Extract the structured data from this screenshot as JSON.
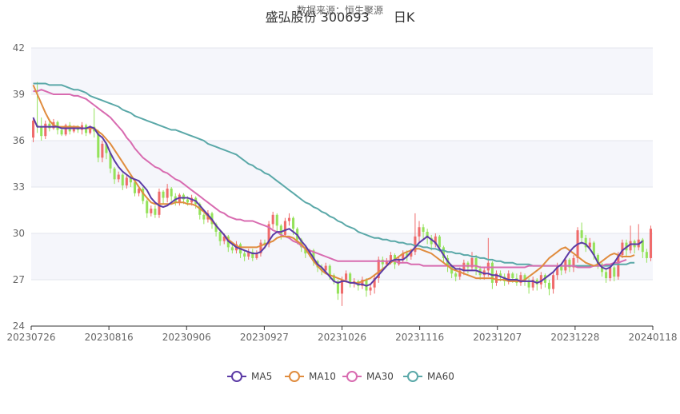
{
  "header": {
    "source_label": "数据来源：恒生聚源",
    "title": "盛弘股份 300693",
    "period_label": "日K"
  },
  "chart_data": {
    "type": "candlestick",
    "ylim": [
      24,
      42
    ],
    "yticks": [
      24,
      27,
      30,
      33,
      36,
      39,
      42
    ],
    "xticks": [
      "20230726",
      "20230816",
      "20230906",
      "20230927",
      "20231026",
      "20231116",
      "20231207",
      "20231228",
      "20240118"
    ],
    "colors": {
      "up": "#ef6b6b",
      "down": "#94e25a",
      "MA5": "#5b3aa5",
      "MA10": "#e08c3e",
      "MA30": "#d86bb0",
      "MA60": "#5aa8a8"
    },
    "legend": [
      "MA5",
      "MA10",
      "MA30",
      "MA60"
    ],
    "candles": [
      [
        36.2,
        37.3,
        35.9,
        37.4
      ],
      [
        37.0,
        36.9,
        36.5,
        39.8
      ],
      [
        36.9,
        36.3,
        36.0,
        37.5
      ],
      [
        36.3,
        37.1,
        36.1,
        37.3
      ],
      [
        37.1,
        36.8,
        36.6,
        37.4
      ],
      [
        36.8,
        37.2,
        36.7,
        37.4
      ],
      [
        37.2,
        36.7,
        36.4,
        37.3
      ],
      [
        36.7,
        36.4,
        36.3,
        36.9
      ],
      [
        36.4,
        37.0,
        36.3,
        37.1
      ],
      [
        37.0,
        36.6,
        36.4,
        37.2
      ],
      [
        36.6,
        36.9,
        36.5,
        37.0
      ],
      [
        36.9,
        36.7,
        36.5,
        37.0
      ],
      [
        36.7,
        37.0,
        36.4,
        37.2
      ],
      [
        37.0,
        36.5,
        36.3,
        37.1
      ],
      [
        36.5,
        36.9,
        36.4,
        37.0
      ],
      [
        36.9,
        36.6,
        36.2,
        38.1
      ],
      [
        36.6,
        34.9,
        34.6,
        36.7
      ],
      [
        34.9,
        35.8,
        34.6,
        36.0
      ],
      [
        35.8,
        35.2,
        34.8,
        35.9
      ],
      [
        35.2,
        34.2,
        33.9,
        35.3
      ],
      [
        34.2,
        33.5,
        33.2,
        34.3
      ],
      [
        33.5,
        33.8,
        33.3,
        34.0
      ],
      [
        33.8,
        33.1,
        32.8,
        33.9
      ],
      [
        33.1,
        33.6,
        32.9,
        33.8
      ],
      [
        33.6,
        33.3,
        33.0,
        33.8
      ],
      [
        33.3,
        32.6,
        32.4,
        33.4
      ],
      [
        32.6,
        32.9,
        32.4,
        33.0
      ],
      [
        32.9,
        32.1,
        31.9,
        33.0
      ],
      [
        32.1,
        31.3,
        31.0,
        32.2
      ],
      [
        31.3,
        31.6,
        31.1,
        31.8
      ],
      [
        31.6,
        31.2,
        31.0,
        31.8
      ],
      [
        31.2,
        32.7,
        31.0,
        32.9
      ],
      [
        32.7,
        32.3,
        31.9,
        32.8
      ],
      [
        32.3,
        32.9,
        32.0,
        33.2
      ],
      [
        32.9,
        32.4,
        32.1,
        33.0
      ],
      [
        32.4,
        32.0,
        31.8,
        32.6
      ],
      [
        32.0,
        32.5,
        31.8,
        32.6
      ],
      [
        32.5,
        32.2,
        31.9,
        32.6
      ],
      [
        32.2,
        32.0,
        31.8,
        32.4
      ],
      [
        32.0,
        32.3,
        31.8,
        32.5
      ],
      [
        32.3,
        31.9,
        31.6,
        32.4
      ],
      [
        31.9,
        31.2,
        30.9,
        32.0
      ],
      [
        31.2,
        30.9,
        30.6,
        31.3
      ],
      [
        30.9,
        31.3,
        30.7,
        31.5
      ],
      [
        31.3,
        30.6,
        30.3,
        31.4
      ],
      [
        30.6,
        30.1,
        29.8,
        30.7
      ],
      [
        30.1,
        29.5,
        29.2,
        30.2
      ],
      [
        29.5,
        29.8,
        29.3,
        30.0
      ],
      [
        29.8,
        29.1,
        28.8,
        29.9
      ],
      [
        29.1,
        28.9,
        28.7,
        29.4
      ],
      [
        28.9,
        29.3,
        28.7,
        29.5
      ],
      [
        29.3,
        28.7,
        28.4,
        29.4
      ],
      [
        28.7,
        28.5,
        28.2,
        28.9
      ],
      [
        28.5,
        28.8,
        28.3,
        29.0
      ],
      [
        28.8,
        28.4,
        28.2,
        29.0
      ],
      [
        28.4,
        28.7,
        28.3,
        28.9
      ],
      [
        28.7,
        29.4,
        28.5,
        29.6
      ],
      [
        29.4,
        29.3,
        29.0,
        29.6
      ],
      [
        29.3,
        30.6,
        29.1,
        30.8
      ],
      [
        30.6,
        31.2,
        30.3,
        31.4
      ],
      [
        31.2,
        30.5,
        30.1,
        31.3
      ],
      [
        30.5,
        29.9,
        29.6,
        30.6
      ],
      [
        29.9,
        30.8,
        29.8,
        31.0
      ],
      [
        30.8,
        31.0,
        30.5,
        31.3
      ],
      [
        31.0,
        30.3,
        29.9,
        31.1
      ],
      [
        30.3,
        29.6,
        29.3,
        30.4
      ],
      [
        29.6,
        29.1,
        28.8,
        29.7
      ],
      [
        29.1,
        28.7,
        28.4,
        29.2
      ],
      [
        28.7,
        28.9,
        28.5,
        29.0
      ],
      [
        28.9,
        28.2,
        27.9,
        29.0
      ],
      [
        28.2,
        27.8,
        27.5,
        28.3
      ],
      [
        27.8,
        27.6,
        27.3,
        28.0
      ],
      [
        27.6,
        27.9,
        27.4,
        28.1
      ],
      [
        27.9,
        27.3,
        27.0,
        28.0
      ],
      [
        27.3,
        26.9,
        26.7,
        27.4
      ],
      [
        26.9,
        26.1,
        25.7,
        27.0
      ],
      [
        26.1,
        27.0,
        25.3,
        27.2
      ],
      [
        27.0,
        27.4,
        26.8,
        27.6
      ],
      [
        27.4,
        26.8,
        26.5,
        27.5
      ],
      [
        26.8,
        26.9,
        26.5,
        27.1
      ],
      [
        26.9,
        26.6,
        26.3,
        27.0
      ],
      [
        26.6,
        27.0,
        26.4,
        27.2
      ],
      [
        27.0,
        26.3,
        25.9,
        27.1
      ],
      [
        26.3,
        26.5,
        26.0,
        26.7
      ],
      [
        26.5,
        27.1,
        26.1,
        27.3
      ],
      [
        27.1,
        28.3,
        26.8,
        28.5
      ],
      [
        28.3,
        28.0,
        27.7,
        28.5
      ],
      [
        28.0,
        28.2,
        27.9,
        28.4
      ],
      [
        28.2,
        28.6,
        28.0,
        28.8
      ],
      [
        28.6,
        28.0,
        27.7,
        28.7
      ],
      [
        28.0,
        28.3,
        27.9,
        28.5
      ],
      [
        28.3,
        28.7,
        28.1,
        28.9
      ],
      [
        28.7,
        28.5,
        28.2,
        28.9
      ],
      [
        28.5,
        28.8,
        28.3,
        29.0
      ],
      [
        28.8,
        29.8,
        28.6,
        31.3
      ],
      [
        29.8,
        30.4,
        29.4,
        30.8
      ],
      [
        30.4,
        30.1,
        29.6,
        30.6
      ],
      [
        30.1,
        29.7,
        29.3,
        30.3
      ],
      [
        29.7,
        29.3,
        28.9,
        29.9
      ],
      [
        29.3,
        29.8,
        29.1,
        30.0
      ],
      [
        29.8,
        29.1,
        28.8,
        29.9
      ],
      [
        29.1,
        28.4,
        28.1,
        29.2
      ],
      [
        28.4,
        27.9,
        27.5,
        28.6
      ],
      [
        27.9,
        27.4,
        27.1,
        28.0
      ],
      [
        27.4,
        27.2,
        26.9,
        27.5
      ],
      [
        27.2,
        27.6,
        27.0,
        27.8
      ],
      [
        27.6,
        28.1,
        27.3,
        28.3
      ],
      [
        28.1,
        27.8,
        27.4,
        28.2
      ],
      [
        27.8,
        28.4,
        27.6,
        28.8
      ],
      [
        28.4,
        27.7,
        27.3,
        28.6
      ],
      [
        27.7,
        27.3,
        27.0,
        27.9
      ],
      [
        27.3,
        27.6,
        27.0,
        27.8
      ],
      [
        27.6,
        28.1,
        27.2,
        29.7
      ],
      [
        28.1,
        26.8,
        26.4,
        28.2
      ],
      [
        26.8,
        27.4,
        26.6,
        27.6
      ],
      [
        27.4,
        27.2,
        26.9,
        27.6
      ],
      [
        27.2,
        26.9,
        26.6,
        27.4
      ],
      [
        26.9,
        27.4,
        26.7,
        27.6
      ],
      [
        27.4,
        27.1,
        26.8,
        27.5
      ],
      [
        27.1,
        26.8,
        26.6,
        27.4
      ],
      [
        26.8,
        27.3,
        26.6,
        27.5
      ],
      [
        27.3,
        26.9,
        26.6,
        27.4
      ],
      [
        26.9,
        26.5,
        26.1,
        27.1
      ],
      [
        26.5,
        27.0,
        26.3,
        27.2
      ],
      [
        27.0,
        26.7,
        26.3,
        27.1
      ],
      [
        26.7,
        27.3,
        26.4,
        27.5
      ],
      [
        27.3,
        26.8,
        26.5,
        27.4
      ],
      [
        26.8,
        26.4,
        26.0,
        27.0
      ],
      [
        26.4,
        27.3,
        26.1,
        27.5
      ],
      [
        27.3,
        27.9,
        27.0,
        28.1
      ],
      [
        27.9,
        27.6,
        27.3,
        28.1
      ],
      [
        27.6,
        28.3,
        27.4,
        28.5
      ],
      [
        28.3,
        27.8,
        27.5,
        28.4
      ],
      [
        27.8,
        28.4,
        27.5,
        28.6
      ],
      [
        28.4,
        30.2,
        28.1,
        30.4
      ],
      [
        30.2,
        29.7,
        29.3,
        30.7
      ],
      [
        29.7,
        29.1,
        28.8,
        29.9
      ],
      [
        29.1,
        29.4,
        28.9,
        29.7
      ],
      [
        29.4,
        28.6,
        28.3,
        29.5
      ],
      [
        28.6,
        28.0,
        27.7,
        28.7
      ],
      [
        28.0,
        27.5,
        27.2,
        28.1
      ],
      [
        27.5,
        27.1,
        26.8,
        27.7
      ],
      [
        27.1,
        27.8,
        26.9,
        28.0
      ],
      [
        27.8,
        27.2,
        26.9,
        27.9
      ],
      [
        27.2,
        28.6,
        27.0,
        28.8
      ],
      [
        28.6,
        29.4,
        28.4,
        29.6
      ],
      [
        29.4,
        28.9,
        28.5,
        29.6
      ],
      [
        28.9,
        29.5,
        28.7,
        30.5
      ],
      [
        29.5,
        29.1,
        28.7,
        29.6
      ],
      [
        29.1,
        29.6,
        28.9,
        30.6
      ],
      [
        29.6,
        28.8,
        28.4,
        29.7
      ],
      [
        28.8,
        28.4,
        28.1,
        29.0
      ],
      [
        28.4,
        30.3,
        28.2,
        30.5
      ]
    ],
    "ma5": [
      37.5,
      36.9,
      36.9,
      36.9,
      36.9,
      36.9,
      36.9,
      36.8,
      36.8,
      36.8,
      36.8,
      36.8,
      36.8,
      36.8,
      36.9,
      36.8,
      36.4,
      36.2,
      35.8,
      35.2,
      34.7,
      34.3,
      34.0,
      33.8,
      33.6,
      33.5,
      33.4,
      33.1,
      32.8,
      32.3,
      32.0,
      31.8,
      31.7,
      31.8,
      32.0,
      32.2,
      32.3,
      32.3,
      32.3,
      32.2,
      32.1,
      31.8,
      31.5,
      31.2,
      30.9,
      30.5,
      30.2,
      29.9,
      29.5,
      29.3,
      29.1,
      29.0,
      28.9,
      28.8,
      28.7,
      28.7,
      28.8,
      29.1,
      29.5,
      29.9,
      30.1,
      30.1,
      30.2,
      30.3,
      30.1,
      29.9,
      29.5,
      29.2,
      28.8,
      28.4,
      28.0,
      27.8,
      27.5,
      27.2,
      26.9,
      26.8,
      26.9,
      26.9,
      26.8,
      26.8,
      26.7,
      26.7,
      26.6,
      26.7,
      27.0,
      27.3,
      27.6,
      27.9,
      28.2,
      28.3,
      28.3,
      28.3,
      28.5,
      28.8,
      29.1,
      29.4,
      29.6,
      29.8,
      29.6,
      29.4,
      29.0,
      28.6,
      28.2,
      27.9,
      27.7,
      27.7,
      27.6,
      27.6,
      27.6,
      27.6,
      27.5,
      27.4,
      27.4,
      27.3,
      27.3,
      27.2,
      27.1,
      27.0,
      27.0,
      27.0,
      26.9,
      26.9,
      26.9,
      26.9,
      26.8,
      26.9,
      27.1,
      27.3,
      27.5,
      27.8,
      28.0,
      28.4,
      28.8,
      29.1,
      29.3,
      29.4,
      29.3,
      29.0,
      28.6,
      28.1,
      27.8,
      27.7,
      27.8,
      28.1,
      28.5,
      28.9,
      29.1,
      29.3,
      29.3,
      29.3,
      29.5
    ],
    "ma10": [
      39.6,
      39.0,
      38.4,
      37.8,
      37.3,
      37.0,
      36.9,
      36.9,
      36.9,
      36.9,
      36.9,
      36.9,
      36.8,
      36.8,
      36.8,
      36.8,
      36.6,
      36.4,
      36.1,
      35.8,
      35.4,
      35.0,
      34.6,
      34.2,
      33.8,
      33.4,
      33.0,
      32.6,
      32.3,
      32.0,
      31.9,
      31.9,
      31.9,
      31.9,
      31.9,
      32.0,
      32.0,
      32.0,
      31.9,
      31.9,
      31.8,
      31.6,
      31.4,
      31.1,
      30.8,
      30.5,
      30.2,
      29.9,
      29.6,
      29.4,
      29.2,
      29.1,
      29.1,
      29.1,
      29.1,
      29.1,
      29.2,
      29.3,
      29.4,
      29.5,
      29.7,
      29.8,
      29.8,
      29.8,
      29.7,
      29.5,
      29.3,
      29.0,
      28.6,
      28.2,
      27.9,
      27.6,
      27.4,
      27.3,
      27.2,
      27.1,
      27.0,
      26.9,
      26.8,
      26.8,
      26.8,
      26.9,
      27.0,
      27.1,
      27.3,
      27.5,
      27.7,
      27.9,
      28.1,
      28.3,
      28.5,
      28.7,
      28.8,
      28.9,
      29.0,
      29.0,
      28.9,
      28.8,
      28.7,
      28.5,
      28.3,
      28.1,
      27.9,
      27.7,
      27.6,
      27.5,
      27.4,
      27.3,
      27.2,
      27.1,
      27.1,
      27.1,
      27.1,
      27.1,
      27.0,
      27.0,
      27.0,
      26.9,
      26.9,
      26.9,
      26.9,
      27.0,
      27.2,
      27.4,
      27.6,
      27.8,
      28.1,
      28.4,
      28.6,
      28.8,
      29.0,
      29.1,
      28.9,
      28.7,
      28.5,
      28.3,
      28.1,
      28.0,
      27.9,
      28.0,
      28.2,
      28.4,
      28.6,
      28.7,
      28.6,
      28.5,
      28.5,
      28.5,
      28.6
    ],
    "ma30": [
      39.2,
      39.2,
      39.3,
      39.2,
      39.1,
      39.0,
      39.0,
      39.0,
      39.0,
      39.0,
      38.9,
      38.9,
      38.8,
      38.7,
      38.5,
      38.3,
      38.1,
      37.9,
      37.7,
      37.5,
      37.2,
      36.9,
      36.6,
      36.2,
      35.9,
      35.5,
      35.2,
      34.9,
      34.7,
      34.5,
      34.3,
      34.2,
      34.0,
      33.9,
      33.7,
      33.5,
      33.4,
      33.2,
      33.0,
      32.8,
      32.6,
      32.4,
      32.2,
      32.0,
      31.8,
      31.6,
      31.4,
      31.3,
      31.1,
      31.0,
      30.9,
      30.9,
      30.8,
      30.8,
      30.8,
      30.7,
      30.6,
      30.5,
      30.4,
      30.2,
      30.1,
      29.9,
      29.8,
      29.7,
      29.5,
      29.4,
      29.2,
      29.0,
      28.9,
      28.8,
      28.7,
      28.6,
      28.5,
      28.4,
      28.3,
      28.2,
      28.2,
      28.2,
      28.2,
      28.2,
      28.2,
      28.2,
      28.2,
      28.2,
      28.2,
      28.2,
      28.2,
      28.2,
      28.2,
      28.2,
      28.1,
      28.1,
      28.1,
      28.0,
      28.0,
      28.0,
      27.9,
      27.9,
      27.9,
      27.9,
      27.9,
      27.9,
      27.9,
      27.9,
      27.9,
      27.9,
      27.9,
      27.9,
      27.9,
      27.9,
      27.8,
      27.8,
      27.8,
      27.8,
      27.8,
      27.8,
      27.8,
      27.8,
      27.8,
      27.8,
      27.8,
      27.8,
      27.9,
      27.9,
      27.9,
      27.9,
      27.9,
      27.9,
      27.9,
      27.9,
      27.9,
      27.9,
      27.9,
      27.9,
      27.8,
      27.8,
      27.8,
      27.8,
      27.9,
      27.9,
      27.9,
      28.0,
      28.0,
      28.1,
      28.1,
      28.2,
      28.3
    ],
    "ma60": [
      39.7,
      39.7,
      39.7,
      39.7,
      39.6,
      39.6,
      39.6,
      39.6,
      39.5,
      39.4,
      39.3,
      39.3,
      39.2,
      39.1,
      38.9,
      38.8,
      38.7,
      38.6,
      38.5,
      38.4,
      38.3,
      38.2,
      38.0,
      37.9,
      37.8,
      37.6,
      37.5,
      37.4,
      37.3,
      37.2,
      37.1,
      37.0,
      36.9,
      36.8,
      36.7,
      36.7,
      36.6,
      36.5,
      36.4,
      36.3,
      36.2,
      36.1,
      36.0,
      35.8,
      35.7,
      35.6,
      35.5,
      35.4,
      35.3,
      35.2,
      35.1,
      34.9,
      34.7,
      34.5,
      34.4,
      34.2,
      34.1,
      33.9,
      33.8,
      33.6,
      33.4,
      33.2,
      33.0,
      32.8,
      32.6,
      32.4,
      32.2,
      32.0,
      31.9,
      31.7,
      31.6,
      31.4,
      31.3,
      31.1,
      31.0,
      30.8,
      30.7,
      30.5,
      30.4,
      30.3,
      30.1,
      30.0,
      29.9,
      29.8,
      29.7,
      29.7,
      29.6,
      29.6,
      29.5,
      29.5,
      29.4,
      29.4,
      29.3,
      29.3,
      29.2,
      29.2,
      29.1,
      29.1,
      29.0,
      29.0,
      28.9,
      28.9,
      28.8,
      28.8,
      28.7,
      28.7,
      28.6,
      28.6,
      28.5,
      28.5,
      28.4,
      28.4,
      28.3,
      28.3,
      28.2,
      28.2,
      28.1,
      28.1,
      28.1,
      28.0,
      28.0,
      28.0,
      28.0,
      27.9,
      27.9,
      27.9,
      27.9,
      27.9,
      27.9,
      27.9,
      27.9,
      27.9,
      27.9,
      27.9,
      27.9,
      27.9,
      27.9,
      27.9,
      27.9,
      27.9,
      27.9,
      27.9,
      27.9,
      28.0,
      28.0,
      28.0,
      28.0,
      28.1,
      28.1
    ]
  }
}
